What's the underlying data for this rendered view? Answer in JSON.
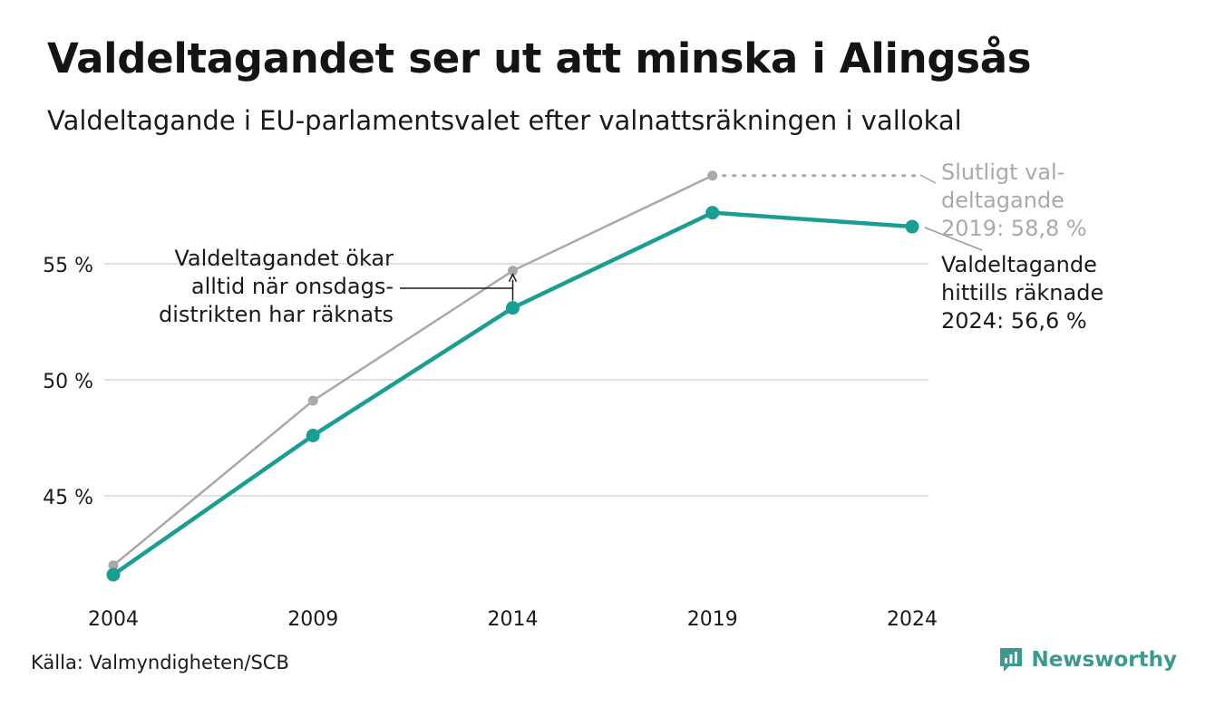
{
  "title": "Valdeltagandet ser ut att minska i Alingsås",
  "subtitle": "Valdeltagande i EU-parlamentsvalet efter valnattsräkningen i vallokal",
  "source": "Källa: Valmyndigheten/SCB",
  "brand": {
    "name": "Newsworthy"
  },
  "colors": {
    "final_series": "#a9a9a9",
    "count_series": "#1a9e94",
    "grid": "#e0e0e0",
    "text": "#1a1a1a"
  },
  "chart_data": {
    "type": "line",
    "x": [
      "2004",
      "2009",
      "2014",
      "2019",
      "2024"
    ],
    "ylim": [
      41.0,
      59.5
    ],
    "yticks": [
      45,
      50,
      55
    ],
    "ytick_labels": [
      "45 %",
      "50 %",
      "55 %"
    ],
    "grid": true,
    "series": [
      {
        "key": "final",
        "values": [
          42.0,
          49.1,
          54.7,
          58.8,
          null
        ],
        "dotted_extension_to": "2024"
      },
      {
        "key": "counted",
        "values": [
          41.6,
          47.6,
          53.1,
          57.2,
          56.6
        ]
      }
    ],
    "annotations": {
      "arrow_note": [
        "Valdeltagandet ökar",
        "alltid när onsdags-",
        "distrikten har räknats"
      ],
      "final_note": [
        "Slutligt val-",
        "deltagande",
        "2019: 58,8 %"
      ],
      "counted_note": [
        "Valdeltagande",
        "hittills räknade",
        "2024: 56,6 %"
      ]
    }
  }
}
